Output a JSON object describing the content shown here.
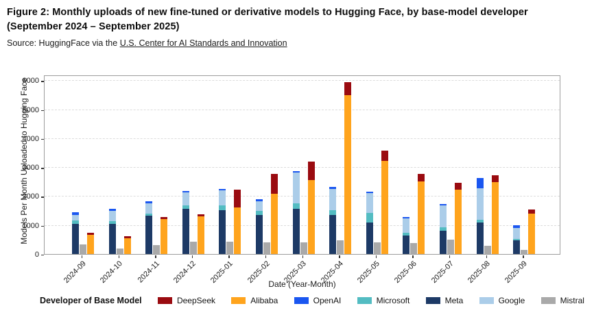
{
  "header": {
    "title": "Figure 2: Monthly uploads of new fine-tuned or derivative models to Hugging Face, by base-model developer (September 2024 – September 2025)",
    "source_prefix": "Source: HuggingFace via the ",
    "source_link": "U.S. Center for AI Standards and Innovation"
  },
  "chart_data": {
    "type": "bar",
    "variant": "grouped-stacked",
    "xlabel": "Date (Year-Month)",
    "ylabel": "Models Per Month Uploaded to Hugging Face",
    "ylim": [
      0,
      6200
    ],
    "yticks": [
      0,
      1000,
      2000,
      3000,
      4000,
      5000,
      6000
    ],
    "grid": "horizontal-dashed",
    "legend_title": "Developer of Base Model",
    "legend_position": "bottom",
    "categories": [
      "2024-09",
      "2024-10",
      "2024-11",
      "2024-12",
      "2025-01",
      "2025-02",
      "2025-03",
      "2025-04",
      "2025-05",
      "2025-06",
      "2025-07",
      "2025-08",
      "2025-09"
    ],
    "bar_groups": [
      [
        "Meta",
        "Microsoft",
        "Google",
        "OpenAI"
      ],
      [
        "Mistral"
      ],
      [
        "Alibaba",
        "DeepSeek"
      ]
    ],
    "series": [
      {
        "name": "DeepSeek",
        "color": "#9A0B10",
        "values": [
          70,
          70,
          60,
          60,
          615,
          690,
          650,
          450,
          350,
          260,
          230,
          250,
          145
        ]
      },
      {
        "name": "Alibaba",
        "color": "#FFA41D",
        "values": [
          660,
          540,
          1210,
          1310,
          1615,
          2090,
          2550,
          5500,
          3230,
          2520,
          2230,
          2480,
          1390
        ]
      },
      {
        "name": "OpenAI",
        "color": "#1A56F0",
        "values": [
          110,
          80,
          60,
          50,
          50,
          65,
          65,
          60,
          65,
          65,
          60,
          340,
          90
        ]
      },
      {
        "name": "Microsoft",
        "color": "#53BCC2",
        "values": [
          105,
          100,
          60,
          110,
          170,
          135,
          190,
          170,
          310,
          80,
          130,
          100,
          60
        ]
      },
      {
        "name": "Meta",
        "color": "#1D3A66",
        "values": [
          1050,
          1040,
          1330,
          1560,
          1520,
          1360,
          1570,
          1340,
          1100,
          650,
          800,
          1080,
          470
        ]
      },
      {
        "name": "Google",
        "color": "#ABCDE9",
        "values": [
          185,
          340,
          370,
          450,
          520,
          330,
          1050,
          750,
          690,
          490,
          740,
          1100,
          380
        ]
      },
      {
        "name": "Mistral",
        "color": "#A9A9A9",
        "values": [
          340,
          200,
          300,
          420,
          430,
          410,
          400,
          470,
          410,
          380,
          500,
          280,
          150
        ]
      }
    ]
  }
}
